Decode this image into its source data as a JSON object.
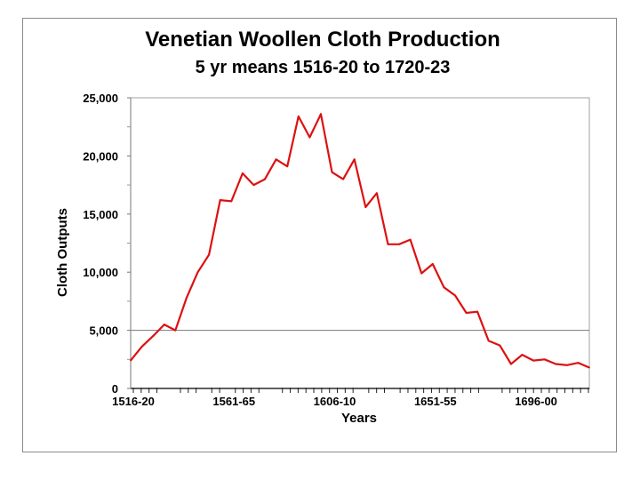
{
  "chart_data": {
    "type": "line",
    "title": "Venetian Woollen Cloth Production",
    "subtitle": "5 yr means 1516-20 to 1720-23",
    "xlabel": "Years",
    "ylabel": "Cloth Outputs",
    "ylim": [
      0,
      25000
    ],
    "yticks": [
      "0",
      "5,000",
      "10,000",
      "15,000",
      "20,000",
      "25,000"
    ],
    "x_tick_labels": [
      "1516-20",
      "1561-65",
      "1606-10",
      "1651-55",
      "1696-00"
    ],
    "x_tick_label_indices": [
      0,
      9,
      18,
      27,
      36
    ],
    "grid": "horizontal line at 5,000",
    "legend": "none",
    "series_color": "#dd1111",
    "minor_tick_pattern": [
      1,
      1,
      1,
      1,
      0,
      0,
      1,
      1,
      1,
      0,
      1,
      1,
      0,
      1,
      1,
      1,
      1,
      0,
      0,
      1,
      1,
      1,
      1,
      1,
      1,
      1,
      1,
      1,
      1,
      0,
      1,
      1,
      1,
      0,
      1,
      1,
      1,
      1,
      1,
      1,
      1,
      1,
      1,
      1,
      1,
      0,
      0,
      1,
      1,
      1,
      1,
      1,
      1,
      1,
      1,
      1,
      1,
      1,
      1
    ],
    "series": [
      {
        "values": [
          2400,
          3600,
          4500,
          5500,
          5000,
          7800,
          10000,
          11500,
          16200,
          16100,
          18500,
          17500,
          18000,
          19700,
          19100,
          23400,
          21600,
          23600,
          18600,
          18000,
          19700,
          15600,
          16800,
          12400,
          12400,
          12800,
          9900,
          10700,
          8700,
          8000,
          6500,
          6600,
          4100,
          3700,
          2100,
          2900,
          2400,
          2500,
          2100,
          2000,
          2200,
          1800
        ]
      }
    ]
  }
}
